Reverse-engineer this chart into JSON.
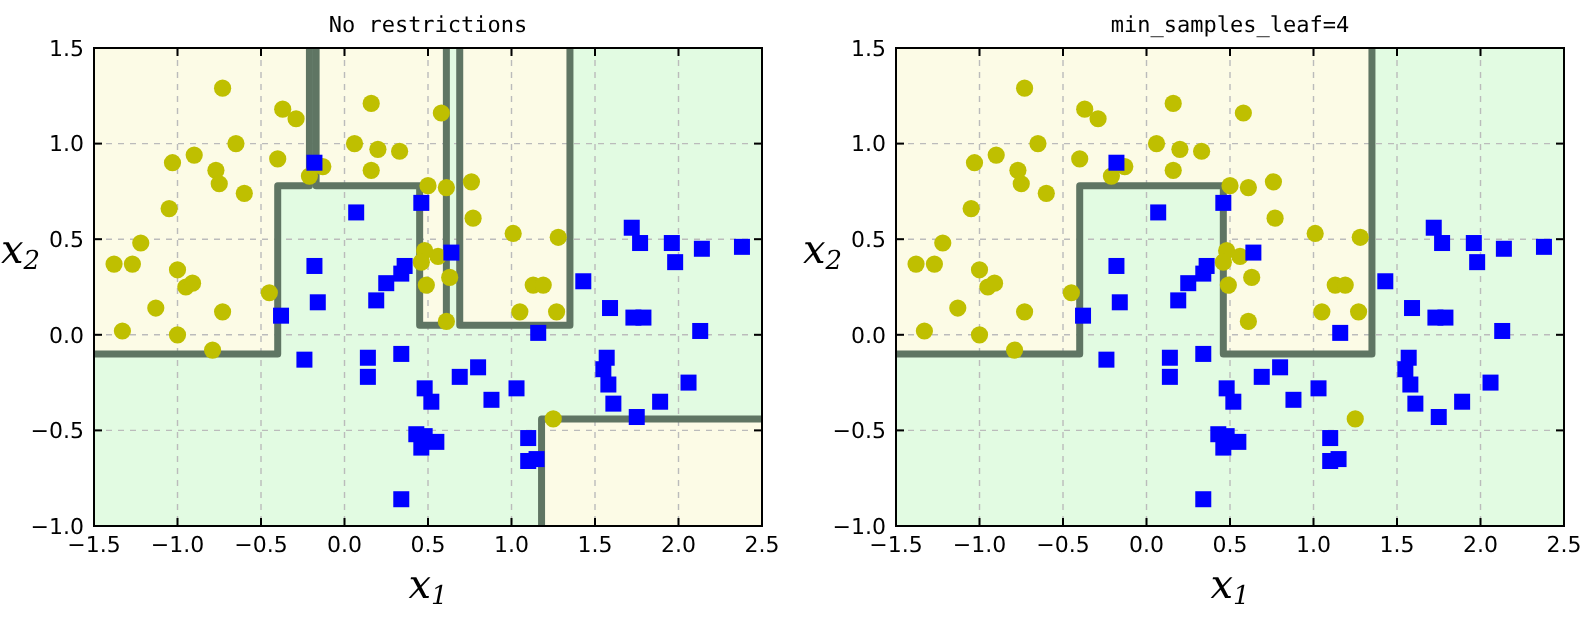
{
  "chart_data": [
    {
      "type": "scatter",
      "title": "No restrictions",
      "xlabel": "x$_{1}$",
      "ylabel": "x$_{2}$",
      "xlim": [
        -1.5,
        2.5
      ],
      "ylim": [
        -1.0,
        1.5
      ],
      "xticks": [
        {
          "value": -1.5,
          "label": "−1.5"
        },
        {
          "value": -1.0,
          "label": "−1.0"
        },
        {
          "value": -0.5,
          "label": "−0.5"
        },
        {
          "value": 0,
          "label": "0.0"
        },
        {
          "value": 0.5,
          "label": "0.5"
        },
        {
          "value": 1.0,
          "label": "1.0"
        },
        {
          "value": 1.5,
          "label": "1.5"
        },
        {
          "value": 2.0,
          "label": "2.0"
        },
        {
          "value": 2.5,
          "label": "2.5"
        }
      ],
      "yticks": [
        {
          "value": -1.0,
          "label": "−1.0"
        },
        {
          "value": -0.5,
          "label": "−0.5"
        },
        {
          "value": 0,
          "label": "0.0"
        },
        {
          "value": 0.5,
          "label": "0.5"
        },
        {
          "value": 1.0,
          "label": "1.0"
        },
        {
          "value": 1.5,
          "label": "1.5"
        }
      ],
      "grid": true,
      "series": [
        {
          "type": "line",
          "color": "#5f7563",
          "x": [
            -1.5,
            -0.4,
            -0.4,
            -0.21,
            -0.21
          ],
          "values": [
            -0.1,
            -0.1,
            0.78,
            0.78,
            1.5
          ]
        },
        {
          "type": "line",
          "color": "#5f7563",
          "x": [
            -0.17,
            -0.17,
            0.45,
            0.45,
            0.61,
            0.61
          ],
          "values": [
            1.5,
            0.78,
            0.78,
            0.05,
            0.05,
            1.5
          ]
        },
        {
          "type": "line",
          "color": "#5f7563",
          "x": [
            0.69,
            0.69,
            1.35,
            1.35
          ],
          "values": [
            1.5,
            0.05,
            0.05,
            1.5
          ]
        },
        {
          "type": "line",
          "color": "#5f7563",
          "x": [
            1.18,
            1.18,
            2.5
          ],
          "values": [
            -1.0,
            -0.44,
            -0.44
          ]
        },
        {
          "marker": "circle",
          "color": "#bfbf00",
          "x": [
            -0.73,
            -0.37,
            -0.29,
            0.16,
            0.58,
            -0.65,
            0.06,
            0.2,
            0.33,
            -1.03,
            -0.9,
            -0.77,
            -0.75,
            -0.6,
            -0.4,
            -0.21,
            -0.13,
            0.16,
            0.5,
            0.61,
            0.76,
            -1.05,
            0.77,
            1.01,
            1.28,
            -1.22,
            -1.38,
            -1.27,
            -1.0,
            0.48,
            0.56,
            0.46,
            -0.95,
            -0.91,
            -1.13,
            -0.73,
            -0.45,
            0.49,
            0.63,
            0.61,
            1.13,
            1.19,
            1.05,
            1.27,
            -1.33,
            -1.0,
            -0.79,
            1.25
          ],
          "values": [
            1.29,
            1.18,
            1.13,
            1.21,
            1.16,
            1.0,
            1.0,
            0.97,
            0.96,
            0.9,
            0.94,
            0.86,
            0.79,
            0.74,
            0.92,
            0.83,
            0.88,
            0.86,
            0.78,
            0.77,
            0.8,
            0.66,
            0.61,
            0.53,
            0.51,
            0.48,
            0.37,
            0.37,
            0.34,
            0.44,
            0.41,
            0.38,
            0.25,
            0.27,
            0.14,
            0.12,
            0.22,
            0.26,
            0.3,
            0.07,
            0.26,
            0.26,
            0.12,
            0.12,
            0.02,
            0.0,
            -0.08,
            -0.44
          ]
        },
        {
          "marker": "square",
          "color": "#0000ff",
          "x": [
            -0.18,
            0.46,
            0.07,
            1.72,
            1.77,
            1.96,
            1.98,
            2.14,
            2.38,
            -0.18,
            0.64,
            0.36,
            0.34,
            0.25,
            1.43,
            -0.38,
            -0.16,
            0.19,
            1.59,
            1.73,
            1.79,
            1.16,
            2.13,
            -0.24,
            0.14,
            0.14,
            0.34,
            0.8,
            0.69,
            0.48,
            0.52,
            0.88,
            1.03,
            1.57,
            1.55,
            1.58,
            1.61,
            1.89,
            2.06,
            1.75,
            0.43,
            0.48,
            0.46,
            0.55,
            1.1,
            1.1,
            1.15,
            0.34
          ],
          "values": [
            0.9,
            0.69,
            0.64,
            0.56,
            0.48,
            0.48,
            0.38,
            0.45,
            0.46,
            0.36,
            0.43,
            0.36,
            0.32,
            0.27,
            0.28,
            0.1,
            0.17,
            0.18,
            0.14,
            0.09,
            0.09,
            0.01,
            0.02,
            -0.13,
            -0.12,
            -0.22,
            -0.1,
            -0.17,
            -0.22,
            -0.28,
            -0.35,
            -0.34,
            -0.28,
            -0.12,
            -0.18,
            -0.26,
            -0.36,
            -0.35,
            -0.25,
            -0.43,
            -0.52,
            -0.53,
            -0.59,
            -0.56,
            -0.54,
            -0.66,
            -0.65,
            -0.86
          ]
        }
      ]
    },
    {
      "type": "scatter",
      "title": "min_samples_leaf=4",
      "xlabel": "x$_{1}$",
      "ylabel": "x$_{2}$",
      "xlim": [
        -1.5,
        2.5
      ],
      "ylim": [
        -1.0,
        1.5
      ],
      "xticks": [
        {
          "value": -1.5,
          "label": "−1.5"
        },
        {
          "value": -1.0,
          "label": "−1.0"
        },
        {
          "value": -0.5,
          "label": "−0.5"
        },
        {
          "value": 0,
          "label": "0.0"
        },
        {
          "value": 0.5,
          "label": "0.5"
        },
        {
          "value": 1.0,
          "label": "1.0"
        },
        {
          "value": 1.5,
          "label": "1.5"
        },
        {
          "value": 2.0,
          "label": "2.0"
        },
        {
          "value": 2.5,
          "label": "2.5"
        }
      ],
      "yticks": [
        {
          "value": -1.0,
          "label": "−1.0"
        },
        {
          "value": -0.5,
          "label": "−0.5"
        },
        {
          "value": 0,
          "label": "0.0"
        },
        {
          "value": 0.5,
          "label": "0.5"
        },
        {
          "value": 1.0,
          "label": "1.0"
        },
        {
          "value": 1.5,
          "label": "1.5"
        }
      ],
      "grid": true,
      "series": [
        {
          "type": "line",
          "color": "#5f7563",
          "x": [
            -1.5,
            -0.4,
            -0.4,
            0.46,
            0.46,
            1.35,
            1.35
          ],
          "values": [
            -0.1,
            -0.1,
            0.78,
            0.78,
            -0.1,
            -0.1,
            1.5
          ]
        },
        {
          "marker": "circle",
          "color": "#bfbf00",
          "x": [
            -0.73,
            -0.37,
            -0.29,
            0.16,
            0.58,
            -0.65,
            0.06,
            0.2,
            0.33,
            -1.03,
            -0.9,
            -0.77,
            -0.75,
            -0.6,
            -0.4,
            -0.21,
            -0.13,
            0.16,
            0.5,
            0.61,
            0.76,
            -1.05,
            0.77,
            1.01,
            1.28,
            -1.22,
            -1.38,
            -1.27,
            -1.0,
            0.48,
            0.56,
            0.46,
            -0.95,
            -0.91,
            -1.13,
            -0.73,
            -0.45,
            0.49,
            0.63,
            0.61,
            1.13,
            1.19,
            1.05,
            1.27,
            -1.33,
            -1.0,
            -0.79,
            1.25
          ],
          "values": [
            1.29,
            1.18,
            1.13,
            1.21,
            1.16,
            1.0,
            1.0,
            0.97,
            0.96,
            0.9,
            0.94,
            0.86,
            0.79,
            0.74,
            0.92,
            0.83,
            0.88,
            0.86,
            0.78,
            0.77,
            0.8,
            0.66,
            0.61,
            0.53,
            0.51,
            0.48,
            0.37,
            0.37,
            0.34,
            0.44,
            0.41,
            0.38,
            0.25,
            0.27,
            0.14,
            0.12,
            0.22,
            0.26,
            0.3,
            0.07,
            0.26,
            0.26,
            0.12,
            0.12,
            0.02,
            0.0,
            -0.08,
            -0.44
          ]
        },
        {
          "marker": "square",
          "color": "#0000ff",
          "x": [
            -0.18,
            0.46,
            0.07,
            1.72,
            1.77,
            1.96,
            1.98,
            2.14,
            2.38,
            -0.18,
            0.64,
            0.36,
            0.34,
            0.25,
            1.43,
            -0.38,
            -0.16,
            0.19,
            1.59,
            1.73,
            1.79,
            1.16,
            2.13,
            -0.24,
            0.14,
            0.14,
            0.34,
            0.8,
            0.69,
            0.48,
            0.52,
            0.88,
            1.03,
            1.57,
            1.55,
            1.58,
            1.61,
            1.89,
            2.06,
            1.75,
            0.43,
            0.48,
            0.46,
            0.55,
            1.1,
            1.1,
            1.15,
            0.34
          ],
          "values": [
            0.9,
            0.69,
            0.64,
            0.56,
            0.48,
            0.48,
            0.38,
            0.45,
            0.46,
            0.36,
            0.43,
            0.36,
            0.32,
            0.27,
            0.28,
            0.1,
            0.17,
            0.18,
            0.14,
            0.09,
            0.09,
            0.01,
            0.02,
            -0.13,
            -0.12,
            -0.22,
            -0.1,
            -0.17,
            -0.22,
            -0.28,
            -0.35,
            -0.34,
            -0.28,
            -0.12,
            -0.18,
            -0.26,
            -0.36,
            -0.35,
            -0.25,
            -0.43,
            -0.52,
            -0.53,
            -0.59,
            -0.56,
            -0.54,
            -0.66,
            -0.65,
            -0.86
          ]
        }
      ]
    }
  ]
}
